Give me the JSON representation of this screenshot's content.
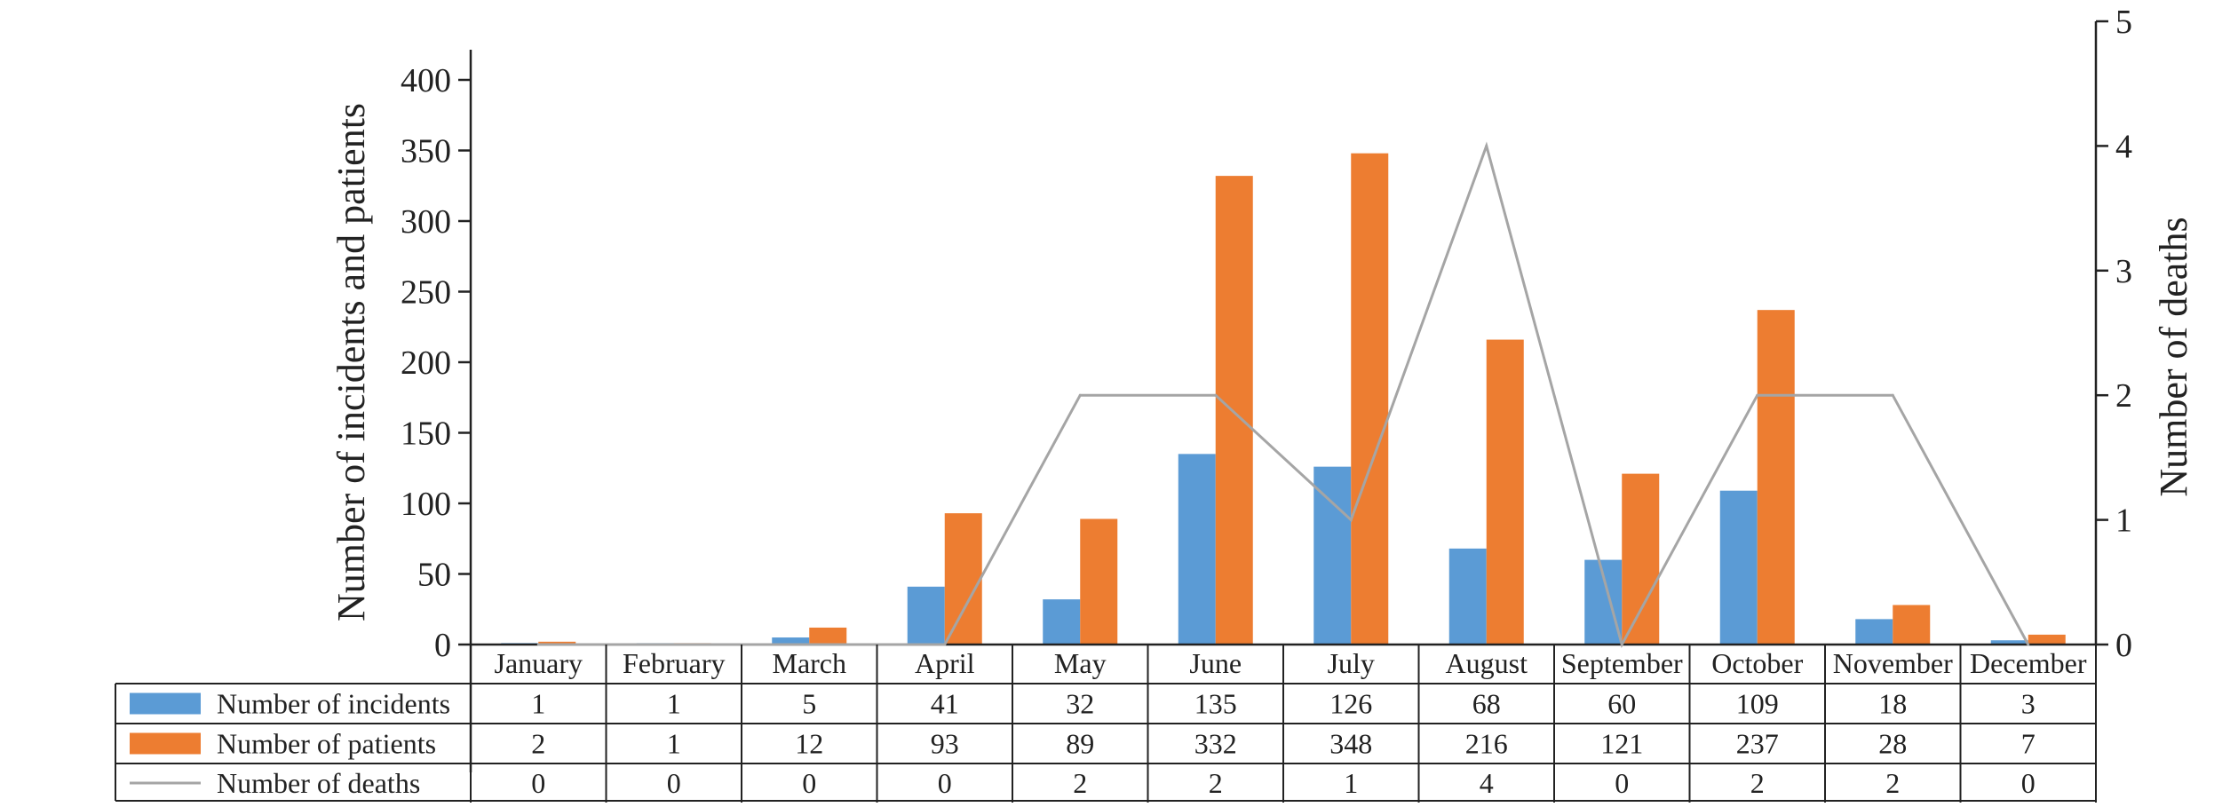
{
  "chart_data": {
    "type": "bar",
    "categories": [
      "January",
      "February",
      "March",
      "April",
      "May",
      "June",
      "July",
      "August",
      "September",
      "October",
      "November",
      "December"
    ],
    "series": [
      {
        "name": "Number of incidents",
        "kind": "bar",
        "axis": "left",
        "color": "#5b9bd5",
        "values": [
          1,
          1,
          5,
          41,
          32,
          135,
          126,
          68,
          60,
          109,
          18,
          3
        ]
      },
      {
        "name": "Number of patients",
        "kind": "bar",
        "axis": "left",
        "color": "#ed7d31",
        "values": [
          2,
          1,
          12,
          93,
          89,
          332,
          348,
          216,
          121,
          237,
          28,
          7
        ]
      },
      {
        "name": "Number of deaths",
        "kind": "line",
        "axis": "right",
        "color": "#a5a5a5",
        "values": [
          0,
          0,
          0,
          0,
          2,
          2,
          1,
          4,
          0,
          2,
          2,
          0
        ]
      }
    ],
    "ylabel": "Number of incidents and patients",
    "y2label": "Number of deaths",
    "ylim": [
      0,
      400
    ],
    "y2lim": [
      0,
      5
    ],
    "yticks": [
      0,
      50,
      100,
      150,
      200,
      250,
      300,
      350,
      400
    ],
    "y2ticks": [
      0,
      1,
      2,
      3,
      4,
      5
    ],
    "data_table": true,
    "grid": false
  }
}
